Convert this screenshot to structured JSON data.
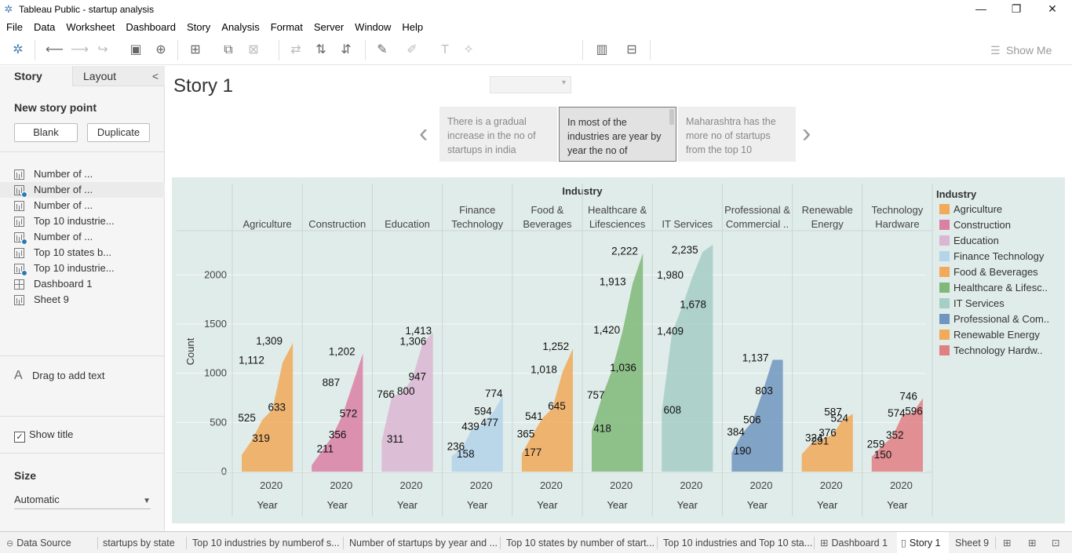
{
  "window": {
    "title": "Tableau Public - startup analysis",
    "minimize": "—",
    "restore": "❐",
    "close": "✕"
  },
  "menu": [
    "File",
    "Data",
    "Worksheet",
    "Dashboard",
    "Story",
    "Analysis",
    "Format",
    "Server",
    "Window",
    "Help"
  ],
  "toolbar": {
    "show_me": "Show Me"
  },
  "sidebar": {
    "tab_story": "Story",
    "tab_layout": "Layout",
    "new_story_point": "New story point",
    "blank_button": "Blank",
    "duplicate_button": "Duplicate",
    "sheets": [
      {
        "label": "Number of ...",
        "icon": "bar-chart-icon",
        "used": false
      },
      {
        "label": "Number of ...",
        "icon": "bar-chart-icon",
        "used": true
      },
      {
        "label": " Number of ...",
        "icon": "bar-chart-icon",
        "used": false
      },
      {
        "label": "Top 10 industrie...",
        "icon": "bar-chart-icon",
        "used": false
      },
      {
        "label": "Number of ...",
        "icon": "bar-chart-icon",
        "used": true
      },
      {
        "label": "Top 10 states b...",
        "icon": "bar-chart-icon",
        "used": false
      },
      {
        "label": "Top 10 industrie...",
        "icon": "bar-chart-icon",
        "used": true
      },
      {
        "label": "Dashboard 1",
        "icon": "dashboard-icon",
        "used": false
      },
      {
        "label": "Sheet 9",
        "icon": "bar-chart-icon",
        "used": false
      }
    ],
    "drag_text": "Drag to add text",
    "show_title": "Show title",
    "size_heading": "Size",
    "size_value": "Automatic"
  },
  "story": {
    "title": "Story 1",
    "points": [
      "There is a gradual increase in the no of startups in india",
      "In  most of the industries are year by year the no of",
      "Maharashtra has the more no of startups from the top 10"
    ],
    "active_point": 1
  },
  "chart_data": {
    "type": "area",
    "title": "Industry",
    "ylabel": "Count",
    "ylim": [
      0,
      2500
    ],
    "yticks": [
      0,
      500,
      1000,
      1500,
      2000
    ],
    "x_tick": "2020",
    "x_label": "Year",
    "grid": true,
    "legend_title": "Industry",
    "legend_position": "right",
    "panels": [
      {
        "name": "Agriculture",
        "header": [
          "Agriculture"
        ],
        "legend": "Agriculture",
        "color": "#f1a95a",
        "values": [
          169,
          319,
          525,
          633,
          1112,
          1309
        ]
      },
      {
        "name": "Construction",
        "header": [
          "Construction"
        ],
        "legend": "Construction",
        "color": "#d980a4",
        "values": [
          65,
          211,
          356,
          572,
          887,
          1202
        ]
      },
      {
        "name": "Education",
        "header": [
          "Education"
        ],
        "legend": "Education",
        "color": "#dbb6d2",
        "values": [
          311,
          766,
          800,
          947,
          1306,
          1413
        ]
      },
      {
        "name": "Finance Technology",
        "header": [
          "Finance",
          "Technology"
        ],
        "legend": "Finance Technology",
        "color": "#b3d4ea",
        "values": [
          158,
          236,
          439,
          477,
          594,
          774
        ]
      },
      {
        "name": "Food & Beverages",
        "header": [
          "Food &",
          "Beverages"
        ],
        "legend": "Food & Beverages",
        "color": "#f1a95a",
        "values": [
          177,
          365,
          541,
          645,
          1018,
          1252
        ]
      },
      {
        "name": "Healthcare & Lifesciences",
        "header": [
          "Healthcare &",
          "Lifesciences"
        ],
        "legend": "Healthcare & Lifesc..",
        "color": "#7fb878",
        "values": [
          418,
          757,
          1036,
          1420,
          1913,
          2222
        ]
      },
      {
        "name": "IT Services",
        "header": [
          "IT Services"
        ],
        "legend": "IT Services",
        "color": "#a5cec6",
        "values": [
          608,
          1409,
          1678,
          1980,
          2235,
          2310
        ]
      },
      {
        "name": "Professional & Commercial Services",
        "header": [
          "Professional &",
          "Commercial .."
        ],
        "legend": "Professional & Com..",
        "color": "#7096c0",
        "values": [
          190,
          384,
          506,
          803,
          1137,
          1137
        ]
      },
      {
        "name": "Renewable Energy",
        "header": [
          "Renewable",
          "Energy"
        ],
        "legend": "Renewable Energy",
        "color": "#f1a95a",
        "values": [
          176,
          291,
          324,
          376,
          524,
          587
        ]
      },
      {
        "name": "Technology Hardware",
        "header": [
          "Technology",
          "Hardware"
        ],
        "legend": "Technology Hardw..",
        "color": "#e07f84",
        "values": [
          150,
          259,
          352,
          574,
          596,
          746
        ]
      }
    ],
    "data_labels": [
      {
        "panel": 0,
        "text": "1,309",
        "v": 1309,
        "pos": 0.35
      },
      {
        "panel": 0,
        "text": "1,112",
        "v": 1112,
        "pos": 0.03
      },
      {
        "panel": 0,
        "text": "525",
        "v": 525,
        "pos": 0.02
      },
      {
        "panel": 0,
        "text": "633",
        "v": 633,
        "pos": 0.57
      },
      {
        "panel": 0,
        "text": "319",
        "v": 319,
        "pos": 0.28
      },
      {
        "panel": 1,
        "text": "1,202",
        "v": 1202,
        "pos": 0.4
      },
      {
        "panel": 1,
        "text": "887",
        "v": 887,
        "pos": 0.28
      },
      {
        "panel": 1,
        "text": "572",
        "v": 572,
        "pos": 0.6
      },
      {
        "panel": 1,
        "text": "356",
        "v": 356,
        "pos": 0.4
      },
      {
        "panel": 1,
        "text": "211",
        "v": 211,
        "pos": 0.18
      },
      {
        "panel": 2,
        "text": "1,413",
        "v": 1413,
        "pos": 0.52
      },
      {
        "panel": 2,
        "text": "1,306",
        "v": 1306,
        "pos": 0.42
      },
      {
        "panel": 2,
        "text": "766",
        "v": 766,
        "pos": 0.0
      },
      {
        "panel": 2,
        "text": "947",
        "v": 947,
        "pos": 0.58
      },
      {
        "panel": 2,
        "text": "800",
        "v": 800,
        "pos": 0.37
      },
      {
        "panel": 2,
        "text": "311",
        "v": 311,
        "pos": 0.18
      },
      {
        "panel": 3,
        "text": "774",
        "v": 774,
        "pos": 0.7
      },
      {
        "panel": 3,
        "text": "594",
        "v": 594,
        "pos": 0.5
      },
      {
        "panel": 3,
        "text": "439",
        "v": 439,
        "pos": 0.27
      },
      {
        "panel": 3,
        "text": "477",
        "v": 477,
        "pos": 0.62
      },
      {
        "panel": 3,
        "text": "236",
        "v": 236,
        "pos": 0.0
      },
      {
        "panel": 3,
        "text": "158",
        "v": 158,
        "pos": 0.18
      },
      {
        "panel": 4,
        "text": "1,252",
        "v": 1252,
        "pos": 0.47
      },
      {
        "panel": 4,
        "text": "1,018",
        "v": 1018,
        "pos": 0.25
      },
      {
        "panel": 4,
        "text": "541",
        "v": 541,
        "pos": 0.15
      },
      {
        "panel": 4,
        "text": "645",
        "v": 645,
        "pos": 0.57
      },
      {
        "panel": 4,
        "text": "365",
        "v": 365,
        "pos": 0.0
      },
      {
        "panel": 4,
        "text": "177",
        "v": 177,
        "pos": 0.13
      },
      {
        "panel": 5,
        "text": "2,222",
        "v": 2222,
        "pos": 0.45
      },
      {
        "panel": 5,
        "text": "1,913",
        "v": 1913,
        "pos": 0.23
      },
      {
        "panel": 5,
        "text": "1,420",
        "v": 1420,
        "pos": 0.12
      },
      {
        "panel": 5,
        "text": "1,036",
        "v": 1036,
        "pos": 0.42
      },
      {
        "panel": 5,
        "text": "757",
        "v": 757,
        "pos": 0.0
      },
      {
        "panel": 5,
        "text": "418",
        "v": 418,
        "pos": 0.12
      },
      {
        "panel": 6,
        "text": "2,235",
        "v": 2235,
        "pos": 0.27
      },
      {
        "panel": 6,
        "text": "1,980",
        "v": 1980,
        "pos": 0.0
      },
      {
        "panel": 6,
        "text": "1,678",
        "v": 1678,
        "pos": 0.42
      },
      {
        "panel": 6,
        "text": "1,409",
        "v": 1409,
        "pos": 0.0
      },
      {
        "panel": 6,
        "text": "608",
        "v": 608,
        "pos": 0.12
      },
      {
        "panel": 7,
        "text": "1,137",
        "v": 1137,
        "pos": 0.28
      },
      {
        "panel": 7,
        "text": "803",
        "v": 803,
        "pos": 0.52
      },
      {
        "panel": 7,
        "text": "506",
        "v": 506,
        "pos": 0.3
      },
      {
        "panel": 7,
        "text": "384",
        "v": 384,
        "pos": 0.0
      },
      {
        "panel": 7,
        "text": "190",
        "v": 190,
        "pos": 0.12
      },
      {
        "panel": 8,
        "text": "587",
        "v": 587,
        "pos": 0.5
      },
      {
        "panel": 8,
        "text": "324",
        "v": 324,
        "pos": 0.15
      },
      {
        "panel": 8,
        "text": "524",
        "v": 524,
        "pos": 0.62
      },
      {
        "panel": 8,
        "text": "376",
        "v": 376,
        "pos": 0.4
      },
      {
        "panel": 8,
        "text": "291",
        "v": 291,
        "pos": 0.26
      },
      {
        "panel": 9,
        "text": "746",
        "v": 746,
        "pos": 0.6
      },
      {
        "panel": 9,
        "text": "574",
        "v": 574,
        "pos": 0.38
      },
      {
        "panel": 9,
        "text": "259",
        "v": 259,
        "pos": 0.0
      },
      {
        "panel": 9,
        "text": "596",
        "v": 596,
        "pos": 0.7
      },
      {
        "panel": 9,
        "text": "352",
        "v": 352,
        "pos": 0.35
      },
      {
        "panel": 9,
        "text": "150",
        "v": 150,
        "pos": 0.13
      }
    ]
  },
  "statusbar": {
    "data_source": "Data Source",
    "tabs": [
      "startups by state",
      "Top 10 industries by numberof s...",
      "Number of startups by year and ...",
      "Top 10 states by number of start...",
      "Top 10 industries and Top 10 sta...",
      "Dashboard 1",
      "Story 1",
      "Sheet 9"
    ],
    "active_tab": "Story 1"
  }
}
